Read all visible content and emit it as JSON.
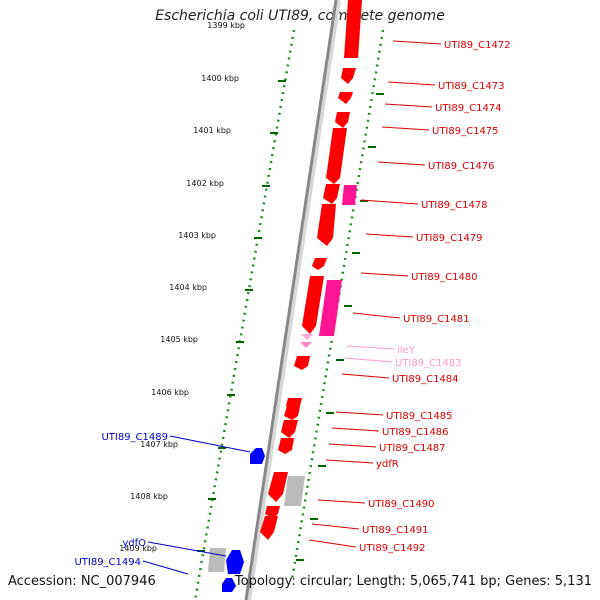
{
  "title": "Escherichia coli UTI89, complete genome",
  "footer": {
    "accession": "Accession: NC_007946",
    "topology": "Topology: circular; Length: 5,065,741 bp; Genes: 5,131"
  },
  "colors": {
    "forward_gene": "#ff0000",
    "forward_gene_alt": "#ff1493",
    "rna_gene": "#ffaad5",
    "reverse_gene": "#0000ff",
    "pseudo_gene": "#bbbbbb",
    "tick_dotted": "#228b22",
    "tick_major": "#006400",
    "backbone": "#888888"
  },
  "ticks": [
    {
      "label": "1399 kbp",
      "faded": true
    },
    {
      "label": "1400 kbp"
    },
    {
      "label": "1401 kbp"
    },
    {
      "label": "1402 kbp"
    },
    {
      "label": "1403 kbp"
    },
    {
      "label": "1404 kbp"
    },
    {
      "label": "1405 kbp"
    },
    {
      "label": "1406 kbp"
    },
    {
      "label": "1407 kbp"
    },
    {
      "label": "1408 kbp"
    },
    {
      "label": "1409 kbp"
    }
  ],
  "right_labels": [
    {
      "text": "UTI89_C1472",
      "kind": "forward"
    },
    {
      "text": "UTI89_C1473",
      "kind": "forward"
    },
    {
      "text": "UTI89_C1474",
      "kind": "forward"
    },
    {
      "text": "UTI89_C1475",
      "kind": "forward"
    },
    {
      "text": "UTI89_C1476",
      "kind": "forward"
    },
    {
      "text": "UTI89_C1478",
      "kind": "forward"
    },
    {
      "text": "UTI89_C1479",
      "kind": "forward"
    },
    {
      "text": "UTI89_C1480",
      "kind": "forward"
    },
    {
      "text": "UTI89_C1481",
      "kind": "forward"
    },
    {
      "text": "ileY",
      "kind": "rna"
    },
    {
      "text": "UTI89_C1483",
      "kind": "rna"
    },
    {
      "text": "UTI89_C1484",
      "kind": "forward"
    },
    {
      "text": "UTI89_C1485",
      "kind": "forward"
    },
    {
      "text": "UTI89_C1486",
      "kind": "forward"
    },
    {
      "text": "UTI89_C1487",
      "kind": "forward"
    },
    {
      "text": "ydfR",
      "kind": "forward"
    },
    {
      "text": "UTI89_C1490",
      "kind": "forward"
    },
    {
      "text": "UTI89_C1491",
      "kind": "forward"
    },
    {
      "text": "UTI89_C1492",
      "kind": "forward"
    }
  ],
  "left_labels": [
    {
      "text": "UTI89_C1489",
      "kind": "reverse"
    },
    {
      "text": "ydfO",
      "kind": "reverse"
    },
    {
      "text": "UTI89_C1494",
      "kind": "reverse"
    }
  ]
}
